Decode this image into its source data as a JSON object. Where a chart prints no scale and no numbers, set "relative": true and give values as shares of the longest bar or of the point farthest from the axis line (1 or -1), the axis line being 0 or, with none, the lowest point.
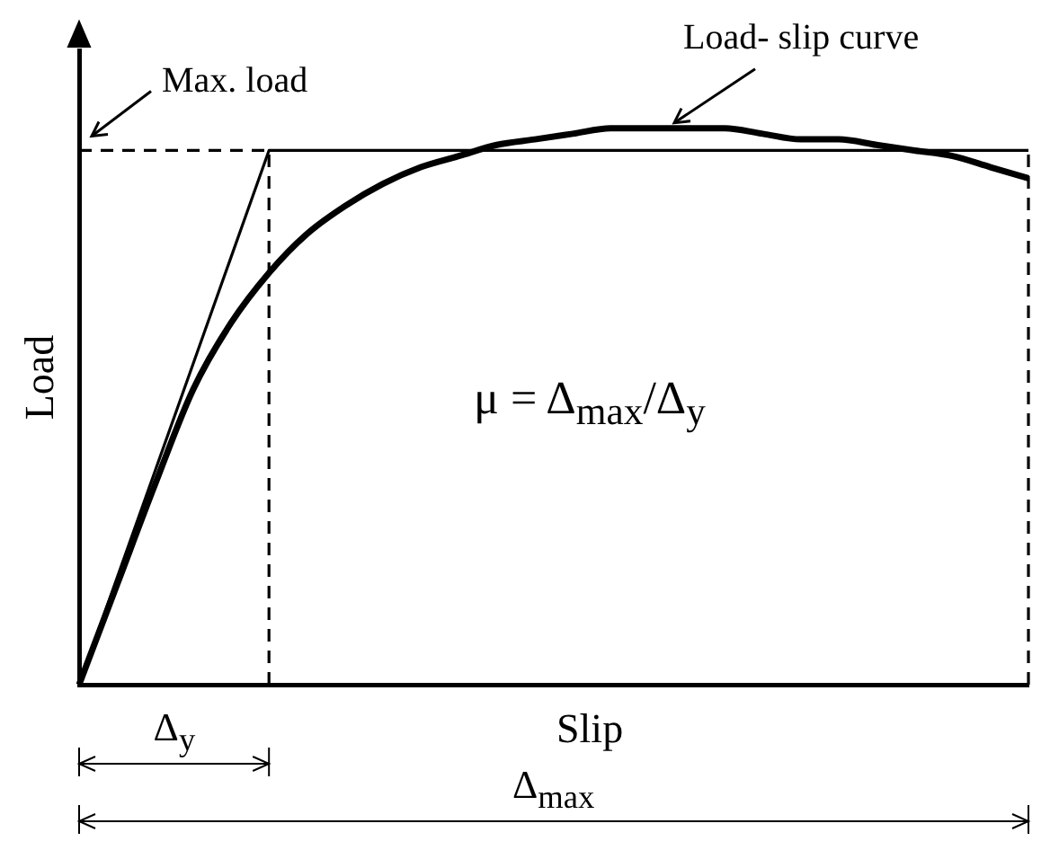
{
  "chart_data": {
    "type": "line",
    "relative": true,
    "xlabel": "Slip",
    "ylabel": "Load",
    "categories": [
      null,
      null,
      null,
      null,
      null,
      null,
      null,
      null,
      null,
      null,
      null,
      null,
      null,
      null,
      null,
      null,
      null,
      null,
      null,
      null,
      null,
      null,
      null,
      null,
      null,
      null
    ],
    "series": [
      {
        "color": "#000000",
        "line_style": "solid",
        "values": [
          0,
          0.18,
          0.36,
          0.53,
          0.65,
          0.74,
          0.81,
          0.86,
          0.9,
          0.93,
          0.95,
          0.97,
          0.98,
          0.99,
          1,
          1,
          1,
          1,
          0.99,
          0.98,
          0.98,
          0.97,
          0.96,
          0.95,
          0.93,
          0.91
        ]
      },
      {
        "color": "#000000",
        "line_style": "solid",
        "values": [
          0,
          0.192,
          0.384,
          0.576,
          0.768,
          0.96,
          0.96,
          0.96,
          0.96,
          0.96,
          0.96,
          0.96,
          0.96,
          0.96,
          0.96,
          0.96,
          0.96,
          0.96,
          0.96,
          0.96,
          0.96,
          0.96,
          0.96,
          0.96,
          0.96,
          0.96
        ]
      },
      {
        "color": "#000000",
        "line_style": "dashed",
        "values": [
          0.96,
          0.96,
          0.96,
          0.96,
          0.96,
          0.96,
          null,
          null,
          null,
          null,
          null,
          null,
          null,
          null,
          null,
          null,
          null,
          null,
          null,
          null,
          null,
          null,
          null,
          null,
          null,
          null
        ]
      }
    ],
    "annotations": [
      "Max. load",
      "Load- slip curve",
      "μ = Δ$_{max}$/Δ$_{y}$",
      "Δ$_{y}$",
      "Δ$_{max}$"
    ],
    "grid": false,
    "legend": false,
    "marker": "none"
  }
}
